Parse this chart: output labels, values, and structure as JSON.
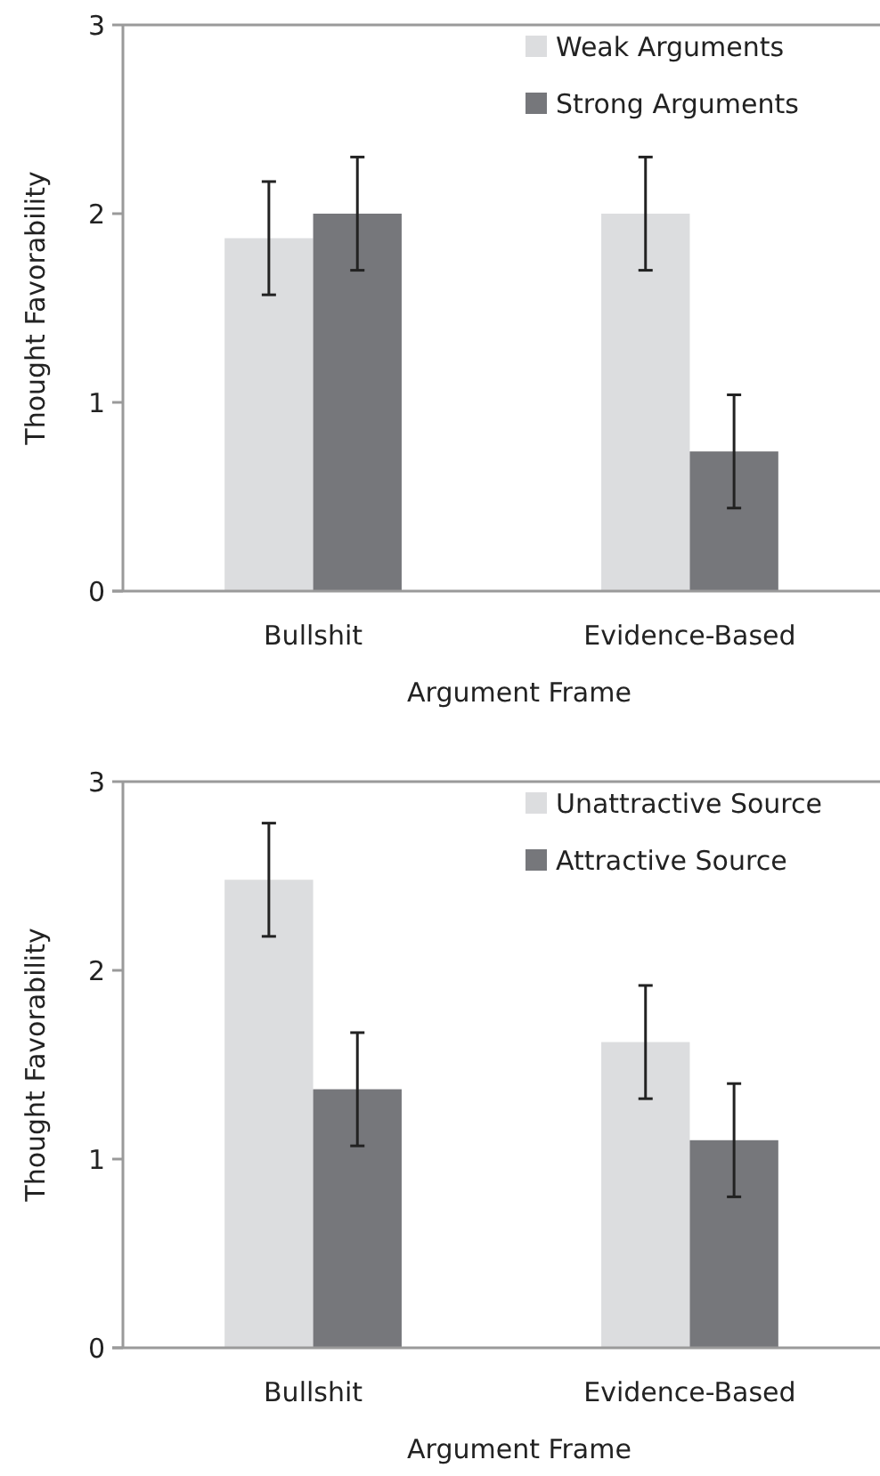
{
  "chart_data": [
    {
      "type": "bar",
      "xlabel": "Argument Frame",
      "ylabel": "Thought Favorability",
      "categories": [
        "Bullshit",
        "Evidence-Based"
      ],
      "ylim": [
        0,
        3
      ],
      "yticks": [
        0,
        1,
        2,
        3
      ],
      "grid": false,
      "legend": "top right",
      "series": [
        {
          "name": "Weak Arguments",
          "color": "#dcdddf",
          "values": [
            1.87,
            2.0
          ],
          "errors": [
            0.3,
            0.3
          ]
        },
        {
          "name": "Strong Arguments",
          "color": "#76777b",
          "values": [
            2.0,
            0.74
          ],
          "errors": [
            0.3,
            0.3
          ]
        }
      ]
    },
    {
      "type": "bar",
      "xlabel": "Argument Frame",
      "ylabel": "Thought Favorability",
      "categories": [
        "Bullshit",
        "Evidence-Based"
      ],
      "ylim": [
        0,
        3
      ],
      "yticks": [
        0,
        1,
        2,
        3
      ],
      "grid": false,
      "legend": "top right",
      "series": [
        {
          "name": "Unattractive Source",
          "color": "#dcdddf",
          "values": [
            2.48,
            1.62
          ],
          "errors": [
            0.3,
            0.3
          ]
        },
        {
          "name": "Attractive Source",
          "color": "#76777b",
          "values": [
            1.37,
            1.1
          ],
          "errors": [
            0.3,
            0.3
          ]
        }
      ]
    }
  ]
}
